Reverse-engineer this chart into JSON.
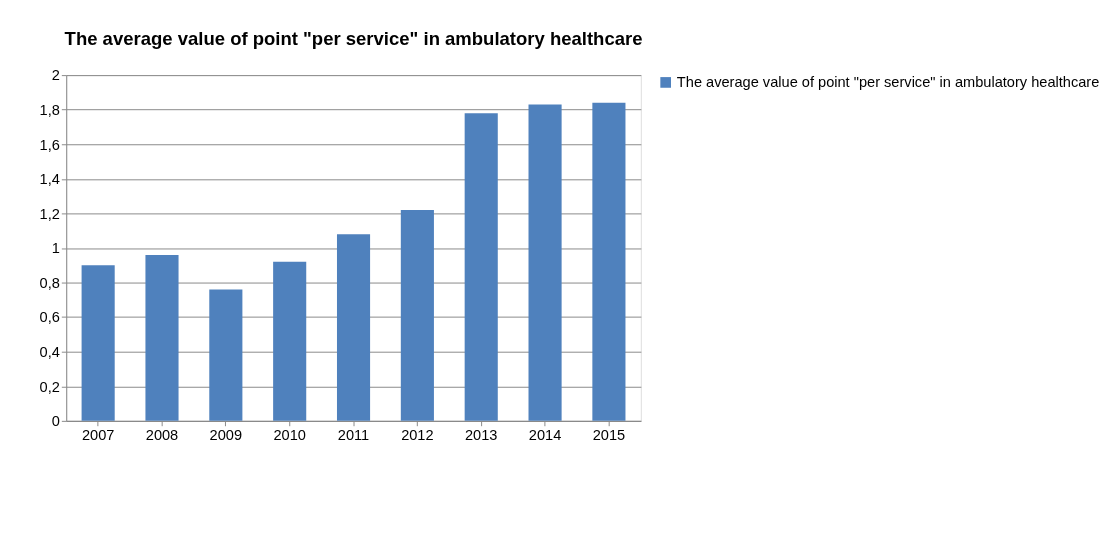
{
  "chart_data": {
    "type": "bar",
    "title": "The average value of point \"per service\" in ambulatory healthcare",
    "categories": [
      "2007",
      "2008",
      "2009",
      "2010",
      "2011",
      "2012",
      "2013",
      "2014",
      "2015"
    ],
    "series": [
      {
        "name": "The average value of point \"per service\" in ambulatory healthcare",
        "color": "#4f81bd",
        "values": [
          0.9,
          0.96,
          0.76,
          0.92,
          1.08,
          1.22,
          1.78,
          1.83,
          1.84
        ]
      }
    ],
    "ylim": [
      0,
      2
    ],
    "yticks": [
      0,
      {
        "value": 0.2,
        "label": "0,2"
      },
      {
        "value": 0.4,
        "label": "0,4"
      },
      {
        "value": 0.6,
        "label": "0,6"
      },
      {
        "value": 0.8,
        "label": "0,8"
      },
      1,
      {
        "value": 1.2,
        "label": "1,2"
      },
      {
        "value": 1.4,
        "label": "1,4"
      },
      {
        "value": 1.6,
        "label": "1,6"
      },
      {
        "value": 1.8,
        "label": "1,8"
      },
      2
    ],
    "grid": "y",
    "legend": "right"
  }
}
